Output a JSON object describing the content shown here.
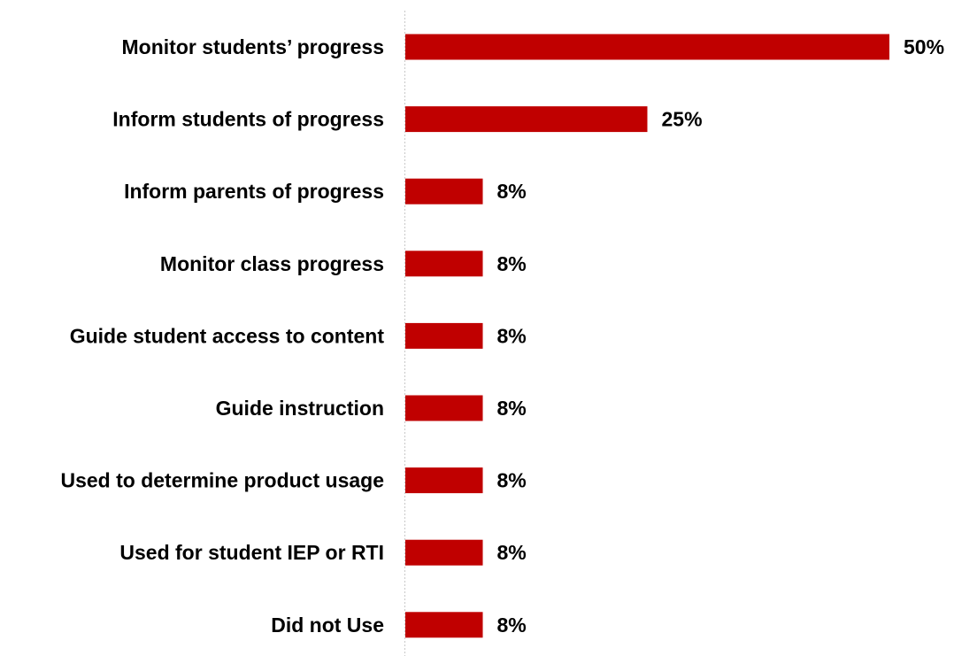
{
  "chart_data": {
    "type": "bar",
    "orientation": "horizontal",
    "title": "",
    "xlabel": "",
    "ylabel": "",
    "categories": [
      "Monitor students’ progress",
      "Inform students of progress",
      "Inform parents of progress",
      "Monitor class progress",
      "Guide student access to content",
      "Guide instruction",
      "Used to determine product usage",
      "Used for student IEP or RTI",
      "Did not Use"
    ],
    "values": [
      50,
      25,
      8,
      8,
      8,
      8,
      8,
      8,
      8
    ],
    "value_labels": [
      "50%",
      "25%",
      "8%",
      "8%",
      "8%",
      "8%",
      "8%",
      "8%",
      "8%"
    ],
    "unit": "%",
    "xlim": [
      0,
      50
    ],
    "grid": false,
    "legend": "none",
    "bar_color": "#c00000"
  }
}
